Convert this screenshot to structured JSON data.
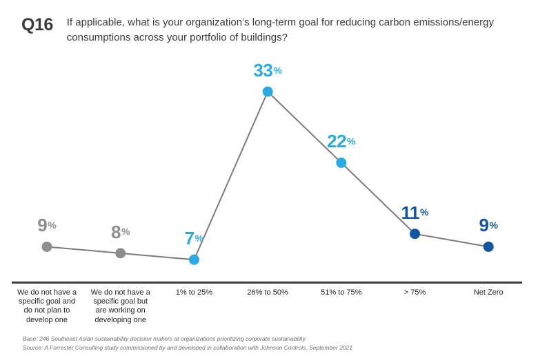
{
  "header": {
    "question_number": "Q16",
    "question_text": "If applicable, what is your organization’s long-term goal for reducing carbon emissions/energy consumptions across your portfolio of buildings?"
  },
  "chart_data": {
    "type": "line",
    "title": "If applicable, what is your organization’s long-term goal for reducing carbon emissions/energy consumptions across your portfolio of buildings?",
    "categories": [
      "We do not have a specific goal and do not plan to develop one",
      "We do not have a specific goal but are working on developing one",
      "1% to 25%",
      "26% to 50%",
      "51% to 75%",
      "> 75%",
      "Net Zero"
    ],
    "values": [
      9,
      8,
      7,
      33,
      22,
      11,
      9
    ],
    "data_labels": [
      "9%",
      "8%",
      "7%",
      "33%",
      "22%",
      "11%",
      "9%"
    ],
    "value_suffix": "%",
    "point_colors": [
      "#8E8E8E",
      "#8E8E8E",
      "#29ABE2",
      "#29ABE2",
      "#29ABE2",
      "#1156A0",
      "#1156A0"
    ],
    "line_color": "#7B7B7B",
    "axis_color": "#3A3A3A",
    "xlabel": "",
    "ylabel": "",
    "ylim": [
      0,
      35
    ],
    "grid": false,
    "legend_position": "none"
  },
  "footer": {
    "base": "Base: 246 Southeast Asian sustainability decision makers at organizations prioritizing corporate sustainability",
    "source": "Source: A Forrester Consulting study commissioned by and developed in collaboration with Johnson Controls, September 2021"
  }
}
